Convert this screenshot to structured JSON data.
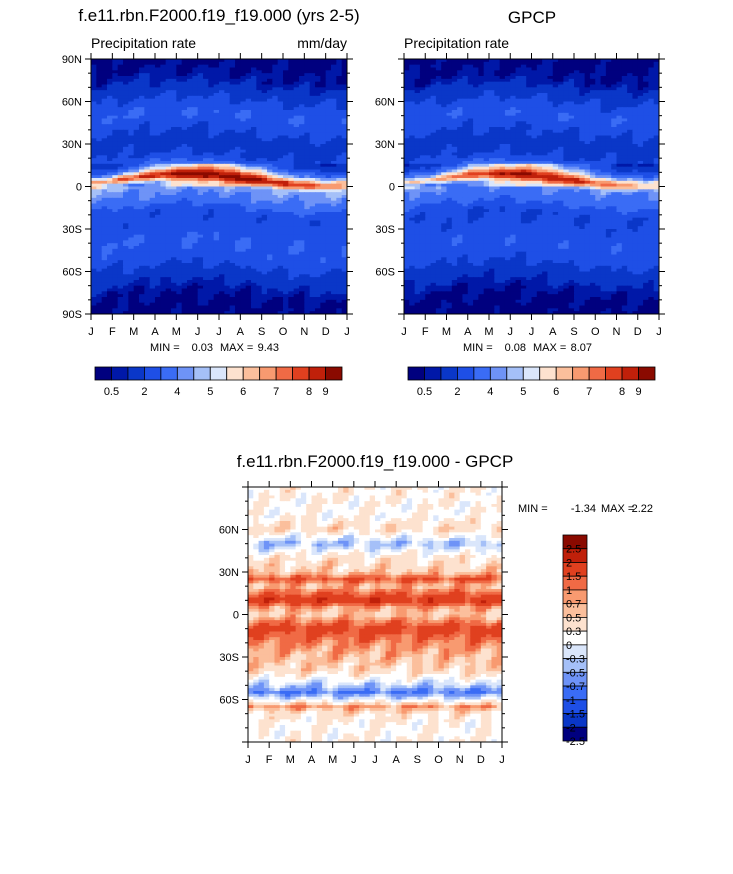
{
  "chart_data": [
    {
      "type": "heatmap",
      "title": "f.e11.rbn.F2000.f19_f19.000 (yrs 2-5)",
      "left_label": "Precipitation rate",
      "right_label": "mm/day",
      "x_tick_labels": [
        "J",
        "F",
        "M",
        "A",
        "M",
        "J",
        "J",
        "A",
        "S",
        "O",
        "N",
        "D",
        "J"
      ],
      "y_tick_labels": [
        "90N",
        "60N",
        "30N",
        "0",
        "30S",
        "60S",
        "90S"
      ],
      "y_ticks": [
        90,
        60,
        30,
        0,
        -30,
        -60,
        -90
      ],
      "ylim": [
        -90,
        90
      ],
      "min_label": "MIN =",
      "min_value": "0.03",
      "max_label": "MAX =",
      "max_value": "9.43",
      "colorbar_labels": [
        "0.5",
        "2",
        "4",
        "5",
        "6",
        "7",
        "8",
        "9"
      ],
      "profile_lat": [
        -90,
        -75,
        -60,
        -50,
        -40,
        -30,
        -20,
        -10,
        0,
        5,
        10,
        15,
        20,
        30,
        40,
        50,
        60,
        75,
        90
      ],
      "profile_mmday": [
        0.2,
        0.6,
        1.8,
        2.6,
        3.0,
        2.4,
        2.3,
        3.8,
        4.6,
        8.6,
        5.0,
        3.0,
        2.0,
        1.5,
        2.2,
        3.0,
        2.1,
        0.7,
        0.2
      ]
    },
    {
      "type": "heatmap",
      "title": "GPCP",
      "left_label": "Precipitation rate",
      "x_tick_labels": [
        "J",
        "F",
        "M",
        "A",
        "M",
        "J",
        "J",
        "A",
        "S",
        "O",
        "N",
        "D",
        "J"
      ],
      "y_tick_labels": [
        "60N",
        "30N",
        "0",
        "30S",
        "60S"
      ],
      "y_ticks": [
        60,
        30,
        0,
        -30,
        -60
      ],
      "ylim": [
        -90,
        90
      ],
      "min_label": "MIN =",
      "min_value": "0.08",
      "max_label": "MAX =",
      "max_value": "8.07",
      "colorbar_labels": [
        "0.5",
        "2",
        "4",
        "5",
        "6",
        "7",
        "8",
        "9"
      ],
      "profile_lat": [
        -90,
        -75,
        -60,
        -50,
        -40,
        -30,
        -20,
        -10,
        0,
        5,
        10,
        15,
        20,
        30,
        40,
        50,
        60,
        75,
        90
      ],
      "profile_mmday": [
        0.2,
        0.5,
        1.6,
        2.4,
        2.8,
        2.3,
        2.0,
        3.4,
        4.2,
        7.8,
        4.8,
        3.0,
        2.0,
        1.5,
        2.1,
        2.9,
        2.0,
        0.6,
        0.2
      ]
    },
    {
      "type": "heatmap",
      "title": "f.e11.rbn.F2000.f19_f19.000 - GPCP",
      "x_tick_labels": [
        "J",
        "F",
        "M",
        "A",
        "M",
        "J",
        "J",
        "A",
        "S",
        "O",
        "N",
        "D",
        "J"
      ],
      "y_tick_labels": [
        "60N",
        "30N",
        "0",
        "30S",
        "60S"
      ],
      "y_ticks": [
        60,
        30,
        0,
        -30,
        -60
      ],
      "ylim": [
        -90,
        90
      ],
      "min_label": "MIN =",
      "min_value": "-1.34",
      "max_label": "MAX =",
      "max_value": "2.22",
      "colorbar_labels": [
        "2.5",
        "2",
        "1.5",
        "1",
        "0.7",
        "0.5",
        "0.3",
        "0",
        "-0.3",
        "-0.5",
        "-0.7",
        "-1",
        "-1.5",
        "-2",
        "-2.5"
      ],
      "profile_lat": [
        -90,
        -80,
        -70,
        -65,
        -60,
        -55,
        -50,
        -40,
        -30,
        -20,
        -10,
        0,
        5,
        10,
        15,
        20,
        25,
        30,
        40,
        50,
        60,
        70,
        90
      ],
      "profile_diff": [
        0.0,
        -0.1,
        0.1,
        0.6,
        -0.3,
        -1.0,
        -0.5,
        0.2,
        0.4,
        0.7,
        1.2,
        0.3,
        0.6,
        1.4,
        0.9,
        0.4,
        1.0,
        0.3,
        0.1,
        -0.6,
        0.2,
        -0.1,
        0.0
      ]
    }
  ],
  "colors": {
    "precip_scale": [
      "#00007f",
      "#0018a8",
      "#0a37c8",
      "#1e4fe6",
      "#3a6cf5",
      "#6e93f7",
      "#a5c0f8",
      "#dae6fb",
      "#fde2cf",
      "#fbbf9c",
      "#f89a70",
      "#f06a45",
      "#e0401f",
      "#c0200a",
      "#8a0a00"
    ],
    "diff_scale": [
      "#8a0a00",
      "#c0200a",
      "#e0401f",
      "#f06a45",
      "#f89a70",
      "#fbbf9c",
      "#fde2cf",
      "#ffffff",
      "#dae6fb",
      "#a5c0f8",
      "#6e93f7",
      "#3a6cf5",
      "#1e4fe6",
      "#0a37c8",
      "#00007f"
    ]
  }
}
